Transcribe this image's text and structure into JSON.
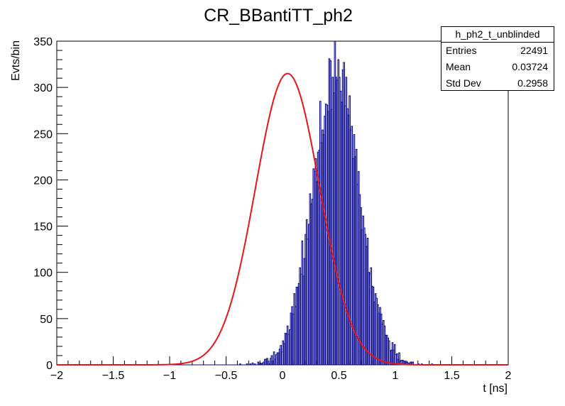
{
  "chart_data": {
    "type": "histogram",
    "title": "CR_BBantiTT_ph2",
    "xlabel": "t [ns]",
    "ylabel": "Evts/bin",
    "xlim": [
      -2,
      2
    ],
    "ylim": [
      0,
      350
    ],
    "xticks": [
      "−2",
      "−1.5",
      "−1",
      "−0.5",
      "0",
      "0.5",
      "1",
      "1.5",
      "2"
    ],
    "yticks": [
      "0",
      "50",
      "100",
      "150",
      "200",
      "250",
      "300",
      "350"
    ],
    "stats": {
      "name": "h_ph2_t_unblinded",
      "entries_label": "Entries",
      "entries": "22491",
      "mean_label": "Mean",
      "mean": "0.03724",
      "std_label": "Std Dev",
      "std": "0.2958"
    },
    "fit": {
      "function": "gaussian",
      "amplitude": 315,
      "mean": 0.045,
      "sigma": 0.285
    },
    "histogram": {
      "bin_width": 0.01,
      "start": -2,
      "counts": [
        0,
        0,
        0,
        0,
        0,
        0,
        0,
        0,
        0,
        0,
        0,
        0,
        0,
        0,
        0,
        0,
        0,
        0,
        0,
        0,
        0,
        0,
        0,
        0,
        0,
        0,
        0,
        0,
        0,
        0,
        0,
        0,
        0,
        0,
        0,
        0,
        0,
        0,
        0,
        0,
        0,
        0,
        0,
        0,
        0,
        0,
        0,
        0,
        0,
        0,
        0,
        0,
        0,
        0,
        0,
        0,
        0,
        0,
        0,
        0,
        0,
        0,
        0,
        0,
        0,
        0,
        0,
        0,
        0,
        0,
        0,
        0,
        0,
        0,
        0,
        0,
        0,
        0,
        0,
        0,
        0,
        0,
        0,
        0,
        0,
        0,
        0,
        0,
        0,
        0,
        0,
        0,
        0,
        0,
        0,
        0,
        0,
        0,
        0,
        0,
        0,
        0,
        0,
        0,
        0,
        0,
        0,
        0,
        0,
        0,
        0,
        0,
        0,
        0,
        0,
        0,
        0,
        0,
        0,
        0,
        0,
        0,
        0,
        0,
        0,
        0,
        0,
        0,
        0,
        0,
        0,
        0,
        0,
        0,
        0,
        0,
        0,
        0,
        0,
        0,
        0,
        0,
        0,
        0,
        0,
        0,
        0,
        0,
        0,
        0,
        0,
        0,
        0,
        0,
        0,
        0,
        0,
        0,
        0,
        0,
        0,
        0,
        1,
        0,
        0,
        0,
        0,
        0,
        1,
        0,
        0,
        1,
        0,
        2,
        0,
        1,
        0,
        0,
        3,
        1,
        2,
        1,
        2,
        3,
        6,
        6,
        7,
        4,
        1,
        7,
        10,
        4,
        14,
        6,
        11,
        13,
        13,
        17,
        21,
        14,
        26,
        23,
        34,
        34,
        42,
        33,
        38,
        56,
        63,
        55,
        77,
        63,
        84,
        84,
        88,
        105,
        98,
        134,
        96,
        115,
        141,
        157,
        136,
        152,
        185,
        174,
        179,
        212,
        209,
        223,
        198,
        230,
        232,
        285,
        240,
        254,
        249,
        269,
        282,
        281,
        274,
        331,
        329,
        276,
        311,
        294,
        351,
        311,
        308,
        330,
        311,
        296,
        284,
        319,
        327,
        280,
        311,
        277,
        270,
        291,
        254,
        258,
        223,
        249,
        225,
        233,
        195,
        209,
        184,
        170,
        146,
        161,
        148,
        141,
        128,
        137,
        100,
        99,
        105,
        85,
        84,
        68,
        77,
        72,
        65,
        56,
        62,
        55,
        44,
        48,
        42,
        32,
        32,
        29,
        26,
        15,
        16,
        24,
        16,
        22,
        11,
        12,
        6,
        13,
        4,
        5,
        5,
        4,
        4,
        3,
        3,
        2,
        1,
        3,
        3,
        3,
        0,
        0,
        0,
        0,
        1,
        0,
        0,
        1,
        0,
        0,
        0,
        0,
        0,
        0,
        0,
        0,
        1,
        0,
        0,
        0,
        0,
        0,
        0,
        0,
        0,
        0,
        0,
        0,
        0,
        0,
        0,
        0,
        0,
        0,
        0,
        0,
        0,
        0,
        0,
        0,
        0,
        0,
        0,
        0,
        0,
        0,
        0,
        0,
        0,
        0,
        0,
        0,
        0,
        0,
        0,
        0,
        0,
        0,
        0,
        0,
        0,
        0,
        0,
        0,
        0,
        0,
        0,
        0,
        0,
        0,
        0,
        0,
        0,
        0,
        0,
        0,
        0,
        0,
        0,
        0,
        0,
        0,
        0,
        0
      ]
    },
    "colors": {
      "histogram": "#00008b",
      "fit": "#e8141b",
      "axis": "#000000"
    },
    "grid": false,
    "legend": "top-right"
  }
}
